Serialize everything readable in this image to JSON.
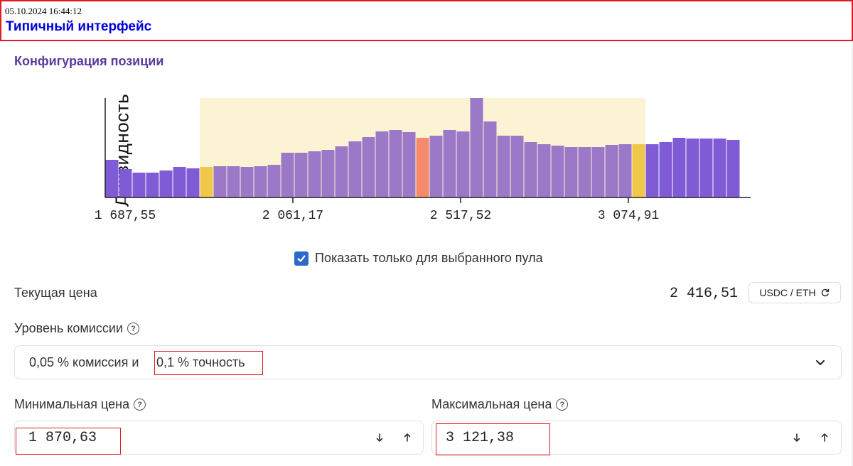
{
  "header": {
    "timestamp": "05.10.2024 16:44:12",
    "title": "Типичный интерфейс"
  },
  "section_title": "Конфигурация позиции",
  "chart_data": {
    "type": "bar",
    "ylabel": "Ликвидность",
    "x_tick_labels": [
      "1 687,55",
      "2 061,17",
      "2 517,52",
      "3 074,91"
    ],
    "values": [
      53,
      40,
      35,
      35,
      38,
      43,
      41,
      43,
      44,
      44,
      43,
      44,
      46,
      63,
      63,
      65,
      67,
      72,
      79,
      85,
      93,
      95,
      92,
      84,
      87,
      95,
      93,
      140,
      107,
      87,
      87,
      78,
      75,
      73,
      71,
      71,
      71,
      74,
      75,
      75,
      75,
      78,
      84,
      83,
      83,
      83,
      81
    ],
    "selected_range": {
      "min_bar": 7,
      "max_bar": 39
    },
    "current_price_bar": 23,
    "colors": {
      "outside": "#7f5bd6",
      "inside": "#9b78c8",
      "range_edge": "#efc74a",
      "current": "#f48a6c",
      "range_bg": "#fbf3d4"
    }
  },
  "checkbox": {
    "label": "Показать только для выбранного пула",
    "checked": true
  },
  "current_price": {
    "label": "Текущая цена",
    "value": "2 416,51",
    "pair": "USDC / ETH"
  },
  "fee": {
    "label": "Уровень комиссии",
    "selected_part1": "0,05 % комиссия и",
    "selected_part2": "0,1 % точность"
  },
  "min_price": {
    "label": "Минимальная цена",
    "value": "1 870,63"
  },
  "max_price": {
    "label": "Максимальная цена",
    "value": "3 121,38"
  }
}
